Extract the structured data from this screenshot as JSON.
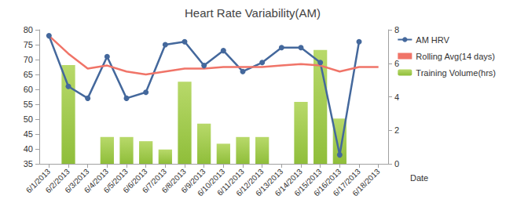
{
  "chart_data": {
    "type": "combo",
    "title": "Heart Rate Variability(AM)",
    "x_label": "Date",
    "categories": [
      "6/1/2013",
      "6/2/2013",
      "6/3/2013",
      "6/4/2013",
      "6/5/2013",
      "6/6/2013",
      "6/7/2013",
      "6/8/2013",
      "6/9/2013",
      "6/10/2013",
      "6/11/2013",
      "6/12/2013",
      "6/13/2013",
      "6/14/2013",
      "6/15/2013",
      "6/16/2013",
      "6/17/2013",
      "6/18/2013"
    ],
    "series": [
      {
        "name": "AM HRV",
        "type": "line",
        "color": "#44689c",
        "marker": "circle",
        "values": [
          78,
          61,
          57,
          71,
          57,
          59,
          75,
          76,
          68,
          73,
          66,
          69,
          74,
          74,
          69,
          38,
          76,
          null
        ]
      },
      {
        "name": "Rolling Avg(14 days)",
        "type": "line",
        "color": "#f07468",
        "marker": "none",
        "values": [
          78,
          72,
          67,
          68,
          66,
          65,
          66,
          67,
          67,
          67.5,
          67.5,
          67.5,
          68,
          68.5,
          68,
          66,
          67.5,
          67.5
        ]
      },
      {
        "name": "Training Volume(hrs)",
        "type": "bar",
        "axis": "y2",
        "color": "#8fbe3a",
        "values": [
          null,
          5.9,
          null,
          1.6,
          1.6,
          1.35,
          0.85,
          4.9,
          2.4,
          1.2,
          1.6,
          1.6,
          null,
          3.7,
          6.8,
          2.7,
          null,
          null
        ]
      }
    ],
    "ylim": [
      35,
      80
    ],
    "yticks": [
      35,
      40,
      45,
      50,
      55,
      60,
      65,
      70,
      75,
      80
    ],
    "y2lim": [
      0,
      8
    ],
    "y2ticks": [
      0,
      2,
      4,
      6,
      8
    ],
    "grid": false,
    "legend": "right"
  }
}
